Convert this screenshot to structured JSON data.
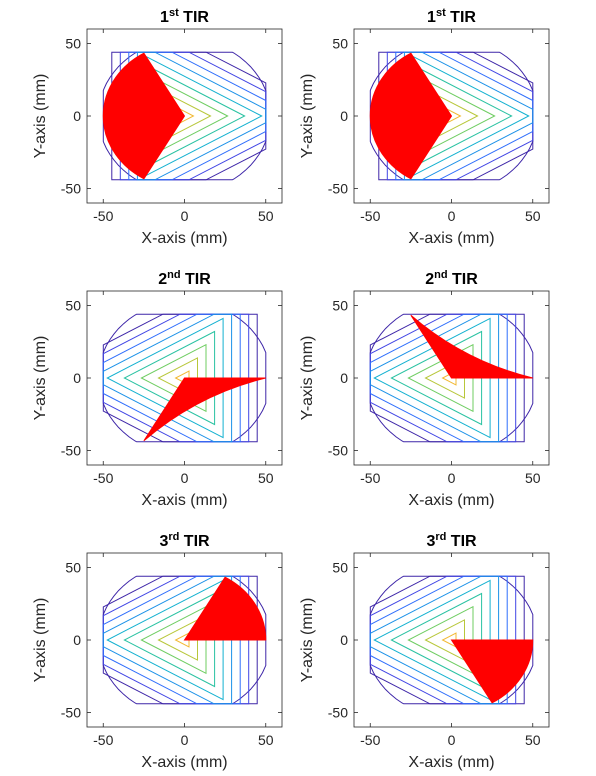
{
  "colors": {
    "wedge": "#ff0000",
    "axes": "#262626",
    "contours": [
      "#3e26a8",
      "#4145e4",
      "#2f6efc",
      "#1b91e8",
      "#13b1d0",
      "#2ac2a2",
      "#6fcd62",
      "#b8c73a",
      "#f2b934"
    ]
  },
  "chart_data": [
    {
      "type": "contour",
      "title": {
        "base": "1",
        "sup": "st",
        "rest": " TIR"
      },
      "xlabel": "X-axis (mm)",
      "ylabel": "Y-axis (mm)",
      "xlim": [
        -60,
        60
      ],
      "ylim": [
        -60,
        60
      ],
      "xticks": [
        -50,
        0,
        50
      ],
      "xtick_labels": [
        "-50",
        "0",
        "50"
      ],
      "yticks": [
        -50,
        0,
        50
      ],
      "ytick_labels": [
        "-50",
        "0",
        "50"
      ],
      "contour_orientation_deg": 0,
      "sector": {
        "radius": 50,
        "start_deg": 120,
        "end_deg": 240
      }
    },
    {
      "type": "contour",
      "title": {
        "base": "1",
        "sup": "st",
        "rest": " TIR"
      },
      "xlabel": "X-axis (mm)",
      "ylabel": "Y-axis (mm)",
      "xlim": [
        -60,
        60
      ],
      "ylim": [
        -60,
        60
      ],
      "xticks": [
        -50,
        0,
        50
      ],
      "xtick_labels": [
        "-50",
        "0",
        "50"
      ],
      "yticks": [
        -50,
        0,
        50
      ],
      "ytick_labels": [
        "-50",
        "0",
        "50"
      ],
      "contour_orientation_deg": 0,
      "sector": {
        "radius": 50,
        "start_deg": 120,
        "end_deg": 240
      }
    },
    {
      "type": "contour",
      "title": {
        "base": "2",
        "sup": "nd",
        "rest": " TIR"
      },
      "xlabel": "X-axis (mm)",
      "ylabel": "Y-axis (mm)",
      "xlim": [
        -60,
        60
      ],
      "ylim": [
        -60,
        60
      ],
      "xticks": [
        -50,
        0,
        50
      ],
      "xtick_labels": [
        "-50",
        "0",
        "50"
      ],
      "yticks": [
        -50,
        0,
        50
      ],
      "ytick_labels": [
        "-50",
        "0",
        "50"
      ],
      "contour_orientation_deg": 180,
      "wedge": {
        "apex": [
          0,
          0
        ],
        "tip": [
          50,
          0
        ],
        "far": [
          -25,
          -43.3
        ],
        "bulge": -0.12
      }
    },
    {
      "type": "contour",
      "title": {
        "base": "2",
        "sup": "nd",
        "rest": " TIR"
      },
      "xlabel": "X-axis (mm)",
      "ylabel": "Y-axis (mm)",
      "xlim": [
        -60,
        60
      ],
      "ylim": [
        -60,
        60
      ],
      "xticks": [
        -50,
        0,
        50
      ],
      "xtick_labels": [
        "-50",
        "0",
        "50"
      ],
      "yticks": [
        -50,
        0,
        50
      ],
      "ytick_labels": [
        "-50",
        "0",
        "50"
      ],
      "contour_orientation_deg": 180,
      "wedge": {
        "apex": [
          0,
          0
        ],
        "tip": [
          50,
          0
        ],
        "far": [
          -25,
          43.3
        ],
        "bulge": 0.12
      }
    },
    {
      "type": "contour",
      "title": {
        "base": "3",
        "sup": "rd",
        "rest": " TIR"
      },
      "xlabel": "X-axis (mm)",
      "ylabel": "Y-axis (mm)",
      "xlim": [
        -60,
        60
      ],
      "ylim": [
        -60,
        60
      ],
      "xticks": [
        -50,
        0,
        50
      ],
      "xtick_labels": [
        "-50",
        "0",
        "50"
      ],
      "yticks": [
        -50,
        0,
        50
      ],
      "ytick_labels": [
        "-50",
        "0",
        "50"
      ],
      "contour_orientation_deg": 180,
      "sector": {
        "radius": 50,
        "start_deg": 0,
        "end_deg": 60
      }
    },
    {
      "type": "contour",
      "title": {
        "base": "3",
        "sup": "rd",
        "rest": " TIR"
      },
      "xlabel": "X-axis (mm)",
      "ylabel": "Y-axis (mm)",
      "xlim": [
        -60,
        60
      ],
      "ylim": [
        -60,
        60
      ],
      "xticks": [
        -50,
        0,
        50
      ],
      "xtick_labels": [
        "-50",
        "0",
        "50"
      ],
      "yticks": [
        -50,
        0,
        50
      ],
      "ytick_labels": [
        "-50",
        "0",
        "50"
      ],
      "contour_orientation_deg": 180,
      "sector": {
        "radius": 50,
        "start_deg": -60,
        "end_deg": 0
      }
    }
  ]
}
